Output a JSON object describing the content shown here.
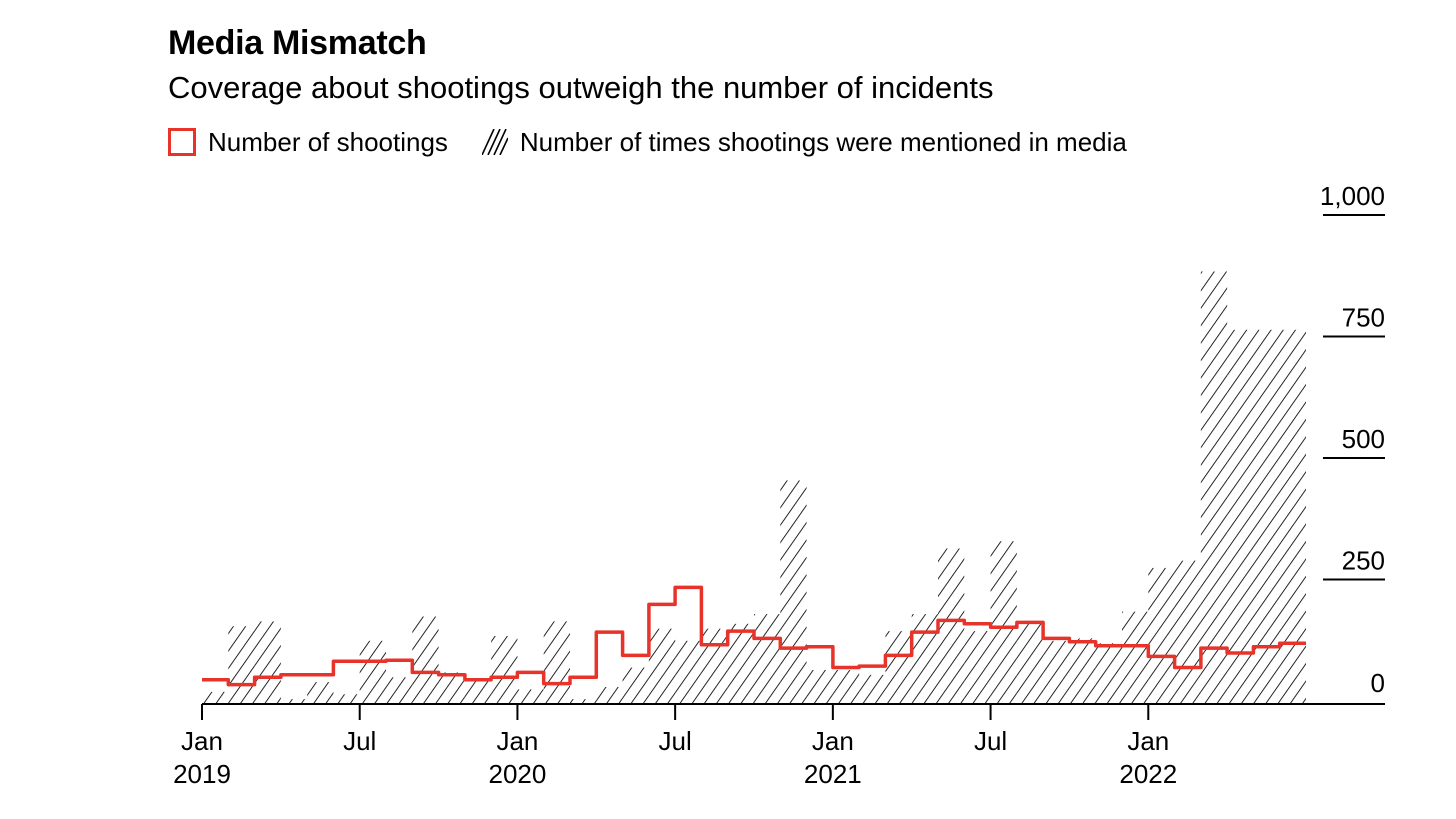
{
  "title": "Media Mismatch",
  "subtitle": "Coverage about shootings outweigh the number of incidents",
  "legend": {
    "shootings": "Number of shootings",
    "mentions": "Number of times shootings were mentioned in media"
  },
  "colors": {
    "shootings_line": "#e8332a",
    "hatch": "#000000",
    "axis": "#000000"
  },
  "chart_data": {
    "type": "area",
    "title": "Media Mismatch",
    "subtitle": "Coverage about shootings outweigh the number of incidents",
    "x_ticks": [
      {
        "x": "2019-01",
        "label": "Jan",
        "year": "2019"
      },
      {
        "x": "2019-07",
        "label": "Jul",
        "year": ""
      },
      {
        "x": "2020-01",
        "label": "Jan",
        "year": "2020"
      },
      {
        "x": "2020-07",
        "label": "Jul",
        "year": ""
      },
      {
        "x": "2021-01",
        "label": "Jan",
        "year": "2021"
      },
      {
        "x": "2021-07",
        "label": "Jul",
        "year": ""
      },
      {
        "x": "2022-01",
        "label": "Jan",
        "year": "2022"
      }
    ],
    "y_ticks": [
      {
        "value": 0,
        "label": "0"
      },
      {
        "value": 250,
        "label": "250"
      },
      {
        "value": 500,
        "label": "500"
      },
      {
        "value": 750,
        "label": "750"
      },
      {
        "value": 1000,
        "label": "1,000"
      }
    ],
    "ylim": [
      0,
      1000
    ],
    "y_axis_side": "right",
    "grid": false,
    "legend_position": "top-left",
    "series": [
      {
        "name": "Number of times shootings were mentioned in media",
        "style": "hatched-step-area",
        "points": [
          [
            "2019-01",
            25
          ],
          [
            "2019-02",
            160
          ],
          [
            "2019-03",
            170
          ],
          [
            "2019-04",
            10
          ],
          [
            "2019-05",
            45
          ],
          [
            "2019-06",
            20
          ],
          [
            "2019-07",
            130
          ],
          [
            "2019-08",
            55
          ],
          [
            "2019-09",
            180
          ],
          [
            "2019-10",
            65
          ],
          [
            "2019-11",
            50
          ],
          [
            "2019-12",
            140
          ],
          [
            "2020-01",
            30
          ],
          [
            "2020-02",
            170
          ],
          [
            "2020-03",
            10
          ],
          [
            "2020-04",
            35
          ],
          [
            "2020-05",
            75
          ],
          [
            "2020-06",
            155
          ],
          [
            "2020-07",
            130
          ],
          [
            "2020-08",
            155
          ],
          [
            "2020-09",
            165
          ],
          [
            "2020-10",
            185
          ],
          [
            "2020-11",
            460
          ],
          [
            "2020-12",
            70
          ],
          [
            "2021-01",
            70
          ],
          [
            "2021-02",
            60
          ],
          [
            "2021-03",
            150
          ],
          [
            "2021-04",
            185
          ],
          [
            "2021-05",
            320
          ],
          [
            "2021-06",
            150
          ],
          [
            "2021-07",
            335
          ],
          [
            "2021-08",
            165
          ],
          [
            "2021-09",
            130
          ],
          [
            "2021-10",
            135
          ],
          [
            "2021-11",
            125
          ],
          [
            "2021-12",
            190
          ],
          [
            "2022-01",
            280
          ],
          [
            "2022-02",
            295
          ],
          [
            "2022-03",
            890
          ],
          [
            "2022-04",
            770
          ]
        ],
        "end": "2022-06"
      },
      {
        "name": "Number of shootings",
        "style": "step-line",
        "points": [
          [
            "2019-01",
            50
          ],
          [
            "2019-02",
            40
          ],
          [
            "2019-03",
            55
          ],
          [
            "2019-04",
            60
          ],
          [
            "2019-05",
            60
          ],
          [
            "2019-06",
            88
          ],
          [
            "2019-07",
            88
          ],
          [
            "2019-08",
            90
          ],
          [
            "2019-09",
            65
          ],
          [
            "2019-10",
            60
          ],
          [
            "2019-11",
            50
          ],
          [
            "2019-12",
            55
          ],
          [
            "2020-01",
            65
          ],
          [
            "2020-02",
            42
          ],
          [
            "2020-03",
            55
          ],
          [
            "2020-04",
            148
          ],
          [
            "2020-05",
            100
          ],
          [
            "2020-06",
            205
          ],
          [
            "2020-07",
            240
          ],
          [
            "2020-08",
            122
          ],
          [
            "2020-09",
            150
          ],
          [
            "2020-10",
            135
          ],
          [
            "2020-11",
            115
          ],
          [
            "2020-12",
            118
          ],
          [
            "2021-01",
            75
          ],
          [
            "2021-02",
            78
          ],
          [
            "2021-03",
            100
          ],
          [
            "2021-04",
            148
          ],
          [
            "2021-05",
            172
          ],
          [
            "2021-06",
            165
          ],
          [
            "2021-07",
            158
          ],
          [
            "2021-08",
            168
          ],
          [
            "2021-09",
            135
          ],
          [
            "2021-10",
            128
          ],
          [
            "2021-11",
            120
          ],
          [
            "2021-12",
            120
          ],
          [
            "2022-01",
            98
          ],
          [
            "2022-02",
            75
          ],
          [
            "2022-03",
            115
          ],
          [
            "2022-04",
            105
          ],
          [
            "2022-05",
            118
          ],
          [
            "2022-06",
            125
          ]
        ],
        "end": "2022-06"
      }
    ]
  }
}
